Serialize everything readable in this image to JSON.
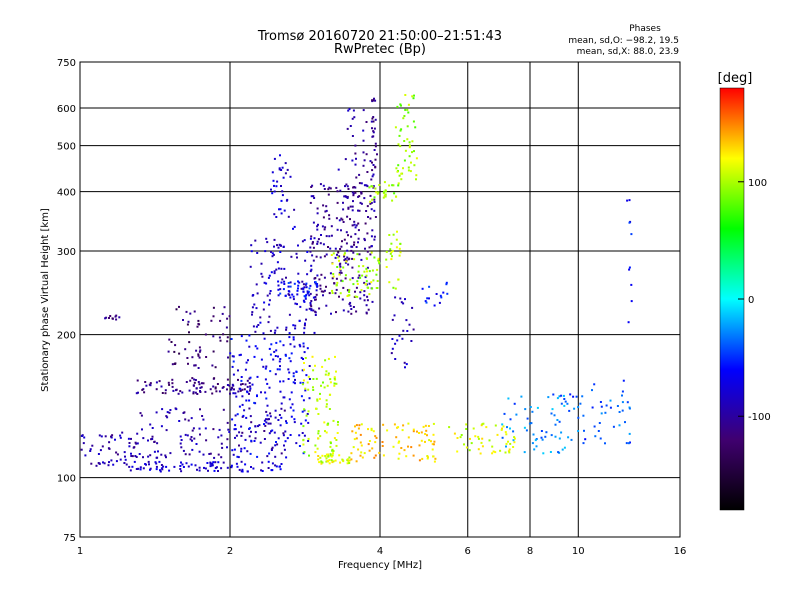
{
  "chart_data": {
    "type": "scatter",
    "title": "Tromsø 20160720 21:50:00–21:51:43",
    "subtitle": "RwPretec (Bp)",
    "xlabel": "Frequency [MHz]",
    "ylabel": "Stationary phase Virtual Height [km]",
    "x_scale": "log",
    "y_scale": "log",
    "xlim": [
      1,
      16
    ],
    "ylim": [
      75,
      750
    ],
    "x_ticks": [
      1,
      2,
      4,
      6,
      8,
      10,
      16
    ],
    "y_ticks": [
      75,
      100,
      200,
      300,
      400,
      500,
      600,
      750
    ],
    "grid": true,
    "legend": {
      "title": "Phases",
      "lines": [
        "mean, sd,O: −98.2, 19.5",
        "mean, sd,X: 88.0, 23.9"
      ],
      "position": "top-right"
    },
    "colorbar": {
      "label": "[deg]",
      "range": [
        -180,
        180
      ],
      "ticks": [
        100,
        0,
        -100
      ],
      "colors": [
        "#000000",
        "#400070",
        "#0000ff",
        "#00ffff",
        "#00ff00",
        "#ffff00",
        "#ff0000"
      ]
    },
    "clusters": [
      {
        "x0": 1.0,
        "x1": 1.3,
        "y0": 105,
        "y1": 125,
        "n": 60,
        "p": -95
      },
      {
        "x0": 1.25,
        "x1": 2.6,
        "y0": 103,
        "y1": 108,
        "n": 90,
        "p": -80
      },
      {
        "x0": 1.3,
        "x1": 2.2,
        "y0": 150,
        "y1": 162,
        "n": 90,
        "p": -110
      },
      {
        "x0": 1.3,
        "x1": 2.6,
        "y0": 110,
        "y1": 140,
        "n": 140,
        "p": -95
      },
      {
        "x0": 1.5,
        "x1": 2.0,
        "y0": 170,
        "y1": 230,
        "n": 60,
        "p": -120
      },
      {
        "x0": 1.12,
        "x1": 1.2,
        "y0": 214,
        "y1": 220,
        "n": 10,
        "p": -110
      },
      {
        "x0": 2.0,
        "x1": 2.9,
        "y0": 110,
        "y1": 200,
        "n": 180,
        "p": -70
      },
      {
        "x0": 2.2,
        "x1": 3.0,
        "y0": 200,
        "y1": 320,
        "n": 140,
        "p": -85
      },
      {
        "x0": 2.5,
        "x1": 3.0,
        "y0": 240,
        "y1": 260,
        "n": 40,
        "p": -60
      },
      {
        "x0": 2.4,
        "x1": 2.7,
        "y0": 330,
        "y1": 480,
        "n": 35,
        "p": -80
      },
      {
        "x0": 2.9,
        "x1": 3.9,
        "y0": 220,
        "y1": 420,
        "n": 220,
        "p": -105
      },
      {
        "x0": 3.3,
        "x1": 3.95,
        "y0": 300,
        "y1": 610,
        "n": 70,
        "p": -100
      },
      {
        "x0": 3.85,
        "x1": 3.95,
        "y0": 450,
        "y1": 640,
        "n": 20,
        "p": -110
      },
      {
        "x0": 2.8,
        "x1": 3.3,
        "y0": 110,
        "y1": 180,
        "n": 90,
        "p": 105
      },
      {
        "x0": 3.0,
        "x1": 3.5,
        "y0": 107,
        "y1": 112,
        "n": 40,
        "p": 110
      },
      {
        "x0": 3.2,
        "x1": 4.0,
        "y0": 240,
        "y1": 300,
        "n": 70,
        "p": 100
      },
      {
        "x0": 3.8,
        "x1": 4.4,
        "y0": 380,
        "y1": 420,
        "n": 30,
        "p": 95
      },
      {
        "x0": 4.3,
        "x1": 4.75,
        "y0": 420,
        "y1": 640,
        "n": 50,
        "p": 95
      },
      {
        "x0": 4.1,
        "x1": 4.4,
        "y0": 250,
        "y1": 330,
        "n": 25,
        "p": 105
      },
      {
        "x0": 3.5,
        "x1": 5.2,
        "y0": 108,
        "y1": 130,
        "n": 90,
        "p": 130
      },
      {
        "x0": 5.5,
        "x1": 7.5,
        "y0": 112,
        "y1": 130,
        "n": 50,
        "p": 110
      },
      {
        "x0": 7.0,
        "x1": 9.5,
        "y0": 112,
        "y1": 150,
        "n": 60,
        "p": -30
      },
      {
        "x0": 9.5,
        "x1": 12.8,
        "y0": 118,
        "y1": 160,
        "n": 50,
        "p": -40
      },
      {
        "x0": 12.5,
        "x1": 12.8,
        "y0": 200,
        "y1": 390,
        "n": 10,
        "p": -60
      },
      {
        "x0": 4.2,
        "x1": 4.7,
        "y0": 170,
        "y1": 240,
        "n": 25,
        "p": -90
      },
      {
        "x0": 4.8,
        "x1": 5.5,
        "y0": 230,
        "y1": 260,
        "n": 15,
        "p": -60
      }
    ]
  }
}
